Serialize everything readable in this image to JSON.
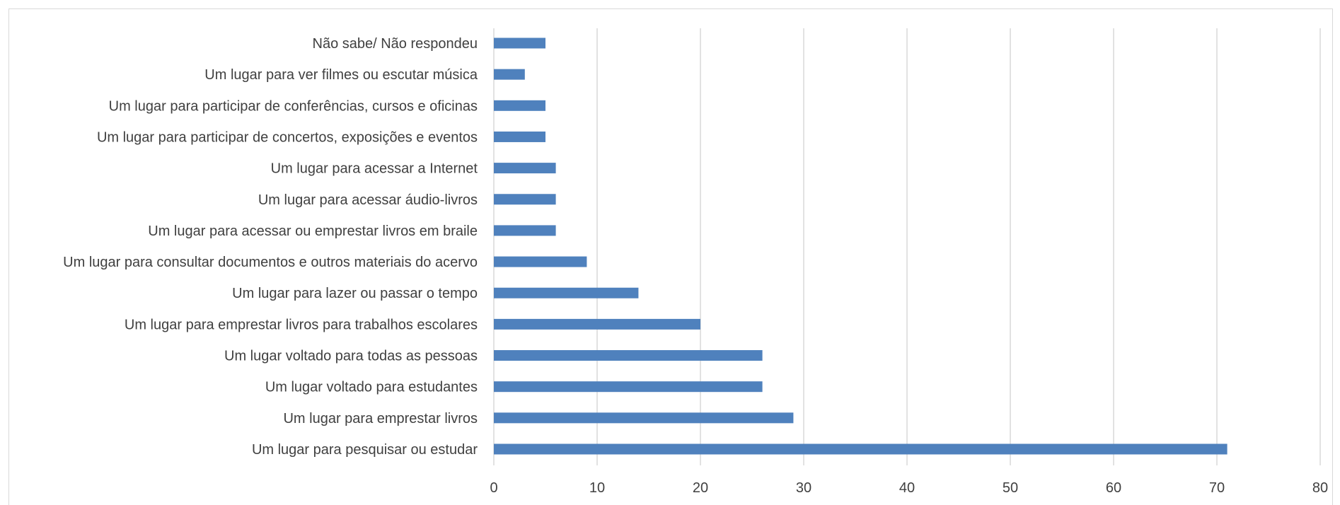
{
  "chart_data": {
    "type": "bar",
    "orientation": "horizontal",
    "categories": [
      "Não sabe/ Não respondeu",
      "Um lugar para ver filmes ou escutar música",
      "Um lugar para participar de conferências, cursos e oficinas",
      "Um lugar para participar de concertos, exposições e eventos",
      "Um lugar para acessar a Internet",
      "Um lugar para acessar áudio-livros",
      "Um lugar para acessar ou emprestar livros em braile",
      "Um lugar para consultar documentos e outros materiais do acervo",
      "Um lugar para lazer ou passar o tempo",
      "Um lugar para emprestar livros para trabalhos escolares",
      "Um lugar voltado para todas as pessoas",
      "Um lugar voltado para estudantes",
      "Um lugar para emprestar livros",
      "Um lugar para pesquisar ou estudar"
    ],
    "values": [
      5,
      3,
      5,
      5,
      6,
      6,
      6,
      9,
      14,
      20,
      26,
      26,
      29,
      71
    ],
    "xlim": [
      0,
      80
    ],
    "xticks": [
      "0",
      "10",
      "20",
      "30",
      "40",
      "50",
      "60",
      "70",
      "80"
    ],
    "grid": "vertical",
    "bar_color": "#4F81BD",
    "grid_color": "#d9d9d9",
    "title": "",
    "xlabel": "",
    "ylabel": ""
  }
}
